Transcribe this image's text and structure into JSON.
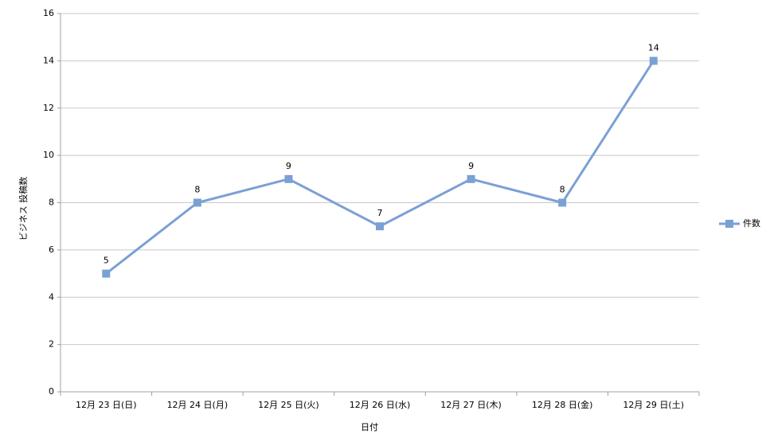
{
  "chart_data": {
    "type": "line",
    "x_label": "日付",
    "y_label": "ビジネス 投稿数",
    "categories": [
      "12月 23 日(日)",
      "12月 24 日(月)",
      "12月 25 日(火)",
      "12月 26 日(水)",
      "12月 27 日(木)",
      "12月 28 日(金)",
      "12月 29 日(土)"
    ],
    "series": [
      {
        "name": "件数",
        "color": "#7ba0d4",
        "values": [
          5,
          8,
          9,
          7,
          9,
          8,
          14
        ]
      }
    ],
    "ylim": [
      0,
      16
    ],
    "yticks": [
      0,
      2,
      4,
      6,
      8,
      10,
      12,
      14,
      16
    ],
    "grid": true,
    "legend": "right"
  }
}
